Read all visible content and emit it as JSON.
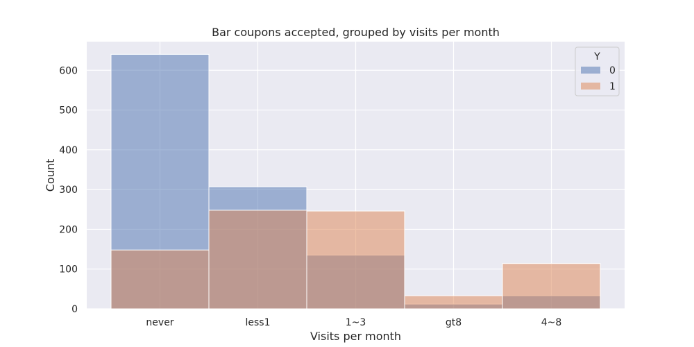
{
  "chart_data": {
    "type": "bar",
    "title": "Bar coupons accepted, grouped by visits per month",
    "xlabel": "Visits per month",
    "ylabel": "Count",
    "categories": [
      "never",
      "less1",
      "1~3",
      "gt8",
      "4~8"
    ],
    "series": [
      {
        "name": "0",
        "color": "#4c72b0",
        "values": [
          640,
          307,
          135,
          12,
          33
        ]
      },
      {
        "name": "1",
        "color": "#dd8452",
        "values": [
          148,
          248,
          246,
          33,
          114
        ]
      }
    ],
    "ylim": [
      0,
      672
    ],
    "yticks": [
      0,
      100,
      200,
      300,
      400,
      500,
      600
    ],
    "grid": true,
    "legend": {
      "title": "Y",
      "position": "top-right"
    },
    "background_color": "#eaeaf2",
    "grid_color": "#ffffff"
  }
}
